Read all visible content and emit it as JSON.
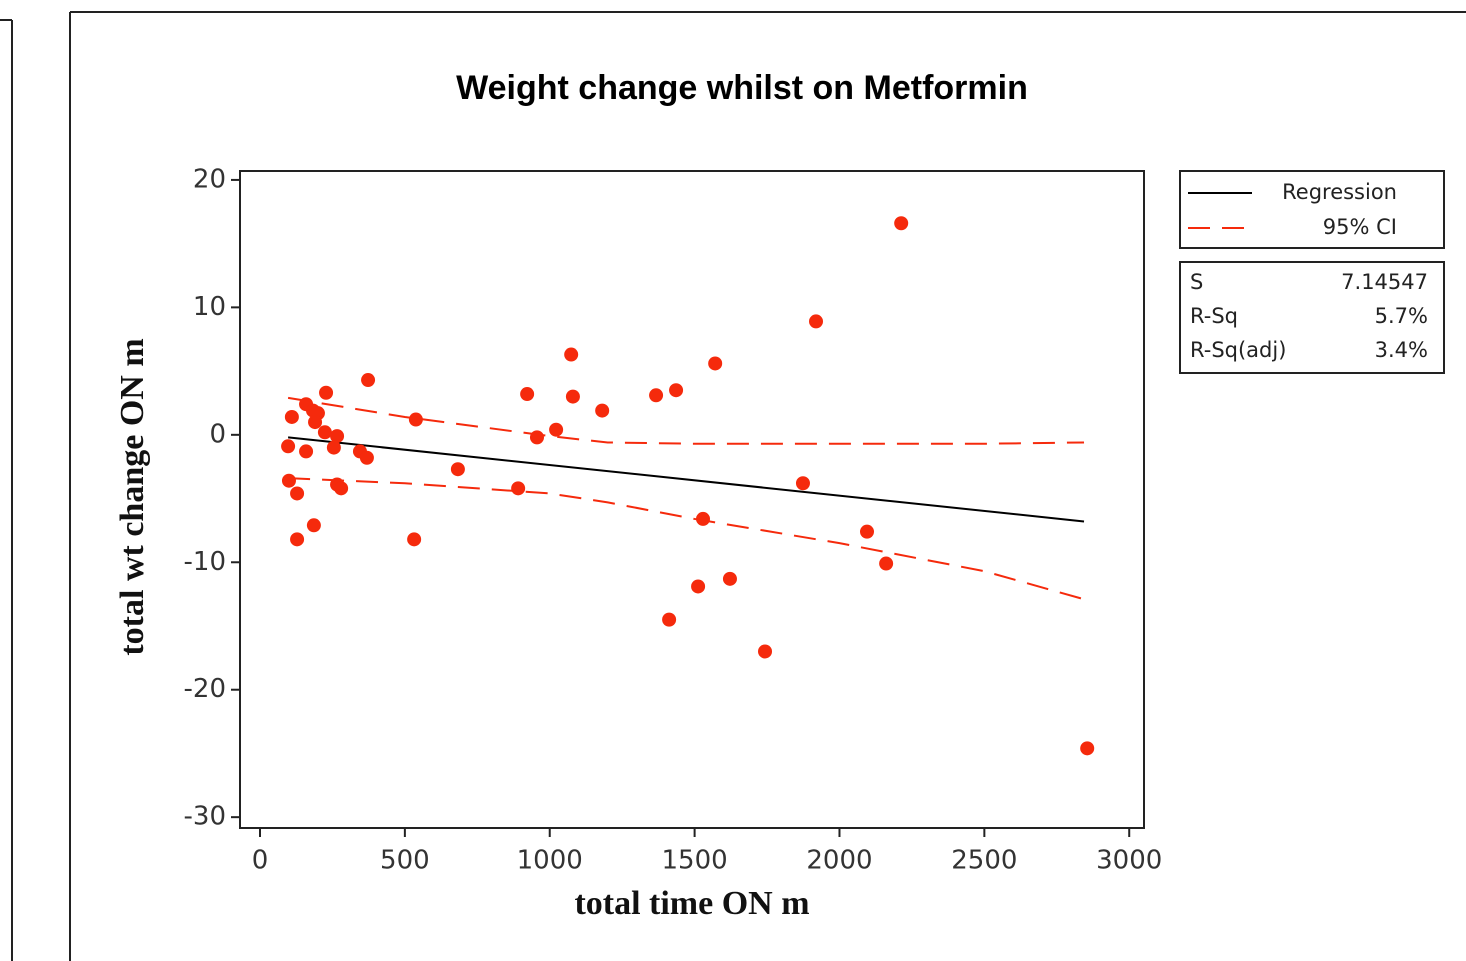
{
  "chart_data": {
    "type": "scatter",
    "title": "Weight change whilst on Metformin",
    "x_label": "total time ON m",
    "y_label": "total wt change ON m",
    "xlim": [
      -69,
      3051
    ],
    "ylim": [
      -30.85,
      20.7
    ],
    "xticks": [
      0,
      500,
      1000,
      1500,
      2000,
      2500,
      3000
    ],
    "yticks": [
      20,
      10,
      0,
      -10,
      -20,
      -30
    ],
    "points": {
      "color": "#f52a0c",
      "x": [
        110,
        97,
        100,
        128,
        128,
        159,
        159,
        183,
        186,
        200,
        190,
        228,
        224,
        266,
        255,
        266,
        280,
        345,
        369,
        373,
        538,
        532,
        683,
        891,
        922,
        956,
        1022,
        1074,
        1080,
        1181,
        1367,
        1436,
        1412,
        1512,
        1529,
        1571,
        1622,
        1743,
        1874,
        1919,
        2095,
        2161,
        2213,
        2855
      ],
      "y": [
        1.4,
        -0.9,
        -3.6,
        -4.6,
        -8.2,
        -1.3,
        2.4,
        1.9,
        -7.1,
        1.7,
        1.0,
        3.3,
        0.2,
        -0.1,
        -1.0,
        -3.9,
        -4.2,
        -1.3,
        -1.8,
        4.3,
        1.2,
        -8.2,
        -2.7,
        -4.2,
        3.2,
        -0.2,
        0.4,
        6.3,
        3.0,
        1.9,
        3.1,
        3.5,
        -14.5,
        -11.9,
        -6.6,
        5.6,
        -11.3,
        -17.0,
        -3.8,
        8.9,
        -7.6,
        -10.1,
        16.6,
        -24.6
      ]
    },
    "series": [
      {
        "name": "Regression",
        "color": "#000000",
        "dashed": false,
        "x": [
          97,
          2844
        ],
        "values": [
          -0.2,
          -6.8
        ]
      },
      {
        "name": "95% CI",
        "color": "#f52a0c",
        "dashed": true,
        "x": [
          97,
          500,
          1000,
          1200,
          1500,
          2000,
          2500,
          2844
        ],
        "upper": [
          2.9,
          1.4,
          -0.1,
          -0.6,
          -0.7,
          -0.7,
          -0.7,
          -0.6
        ],
        "lower": [
          -3.4,
          -3.8,
          -4.6,
          -5.3,
          -6.6,
          -8.5,
          -10.7,
          -12.9
        ]
      }
    ],
    "stats": [
      {
        "label": "S",
        "value": "7.14547"
      },
      {
        "label": "R-Sq",
        "value": "5.7%"
      },
      {
        "label": "R-Sq(adj)",
        "value": "3.4%"
      }
    ]
  }
}
